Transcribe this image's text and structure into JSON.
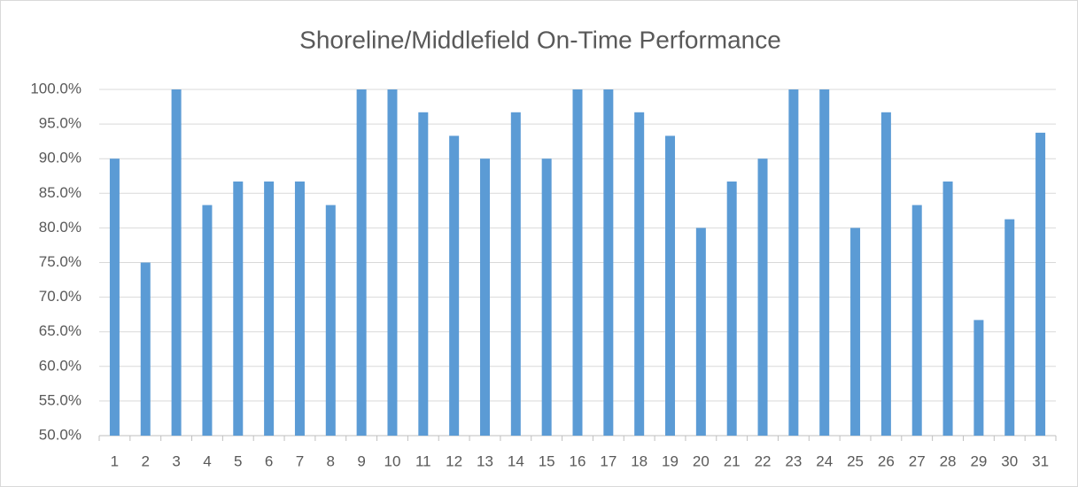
{
  "chart_data": {
    "type": "bar",
    "title": "Shoreline/Middlefield On-Time Performance",
    "categories": [
      "1",
      "2",
      "3",
      "4",
      "5",
      "6",
      "7",
      "8",
      "9",
      "10",
      "11",
      "12",
      "13",
      "14",
      "15",
      "16",
      "17",
      "18",
      "19",
      "20",
      "21",
      "22",
      "23",
      "24",
      "25",
      "26",
      "27",
      "28",
      "29",
      "30",
      "31"
    ],
    "values": [
      90,
      75,
      100,
      83.3,
      86.7,
      86.7,
      86.7,
      83.3,
      100,
      100,
      96.7,
      93.3,
      90,
      96.7,
      90,
      100,
      100,
      96.7,
      93.3,
      80,
      86.7,
      90,
      100,
      100,
      80,
      96.7,
      83.3,
      86.7,
      66.7,
      81.25,
      93.75
    ],
    "color": "#5b9bd5",
    "ylim": [
      50,
      100
    ],
    "yticks": [
      {
        "value": 50,
        "label": "50.0%"
      },
      {
        "value": 55,
        "label": "55.0%"
      },
      {
        "value": 60,
        "label": "60.0%"
      },
      {
        "value": 65,
        "label": "65.0%"
      },
      {
        "value": 70,
        "label": "70.0%"
      },
      {
        "value": 75,
        "label": "75.0%"
      },
      {
        "value": 80,
        "label": "80.0%"
      },
      {
        "value": 85,
        "label": "85.0%"
      },
      {
        "value": 90,
        "label": "90.0%"
      },
      {
        "value": 95,
        "label": "95.0%"
      },
      {
        "value": 100,
        "label": "100.0%"
      }
    ],
    "grid": true
  }
}
